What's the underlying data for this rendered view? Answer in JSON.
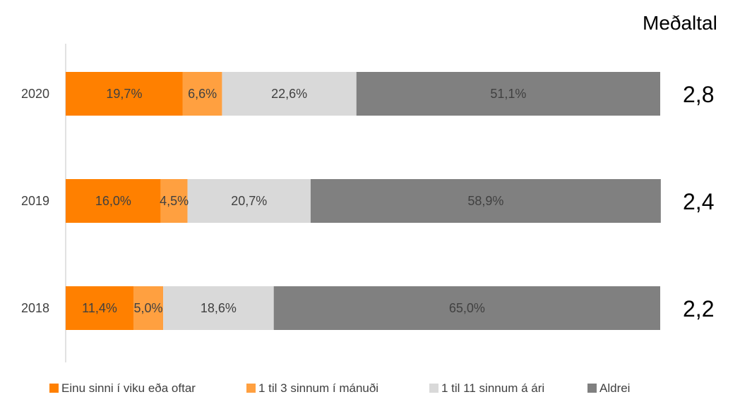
{
  "chart_data": {
    "type": "bar",
    "orientation": "horizontal",
    "stacked": true,
    "categories": [
      "2020",
      "2019",
      "2018"
    ],
    "series": [
      {
        "name": "Einu sinni í viku eða oftar",
        "values": [
          19.7,
          16.0,
          11.4
        ],
        "labels": [
          "19,7%",
          "16,0%",
          "11,4%"
        ],
        "color": "#FF8000",
        "label_color": "#404040"
      },
      {
        "name": "1 til 3 sinnum í mánuði",
        "values": [
          6.6,
          4.5,
          5.0
        ],
        "labels": [
          "6,6%",
          "4,5%",
          "5,0%"
        ],
        "color": "#FFA040",
        "label_color": "#404040"
      },
      {
        "name": "1 til 11 sinnum á ári",
        "values": [
          22.6,
          20.7,
          18.6
        ],
        "labels": [
          "22,6%",
          "20,7%",
          "18,6%"
        ],
        "color": "#D9D9D9",
        "label_color": "#404040"
      },
      {
        "name": "Aldrei",
        "values": [
          51.1,
          58.9,
          65.0
        ],
        "labels": [
          "51,1%",
          "58,9%",
          "65,0%"
        ],
        "color": "#808080",
        "label_color": "#404040"
      }
    ],
    "xlim": [
      0,
      100
    ],
    "grid": false,
    "legend": "bottom",
    "side_title": "Meðaltal",
    "side_values": [
      "2,8",
      "2,4",
      "2,2"
    ]
  }
}
